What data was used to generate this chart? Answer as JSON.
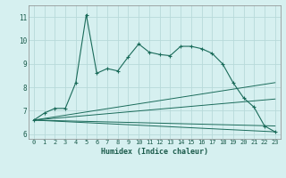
{
  "xlabel": "Humidex (Indice chaleur)",
  "bg_color": "#d6f0f0",
  "line_color": "#1a6b5a",
  "grid_color": "#b8dada",
  "xlim": [
    -0.5,
    23.5
  ],
  "ylim": [
    5.8,
    11.5
  ],
  "yticks": [
    6,
    7,
    8,
    9,
    10,
    11
  ],
  "xticks": [
    0,
    1,
    2,
    3,
    4,
    5,
    6,
    7,
    8,
    9,
    10,
    11,
    12,
    13,
    14,
    15,
    16,
    17,
    18,
    19,
    20,
    21,
    22,
    23
  ],
  "line1_x": [
    0,
    1,
    2,
    3,
    4,
    5,
    6,
    7,
    8,
    9,
    10,
    11,
    12,
    13,
    14,
    15,
    16,
    17,
    18,
    19,
    20,
    21,
    22,
    23
  ],
  "line1_y": [
    6.6,
    6.9,
    7.1,
    7.1,
    8.2,
    11.1,
    8.6,
    8.8,
    8.7,
    9.3,
    9.85,
    9.5,
    9.4,
    9.35,
    9.75,
    9.75,
    9.65,
    9.45,
    9.0,
    8.2,
    7.55,
    7.15,
    6.35,
    6.1
  ],
  "line2_x": [
    0,
    23
  ],
  "line2_y": [
    6.6,
    6.1
  ],
  "line3_x": [
    0,
    23
  ],
  "line3_y": [
    6.6,
    6.35
  ],
  "line4_x": [
    0,
    23
  ],
  "line4_y": [
    6.6,
    7.5
  ],
  "line5_x": [
    0,
    23
  ],
  "line5_y": [
    6.6,
    8.2
  ]
}
